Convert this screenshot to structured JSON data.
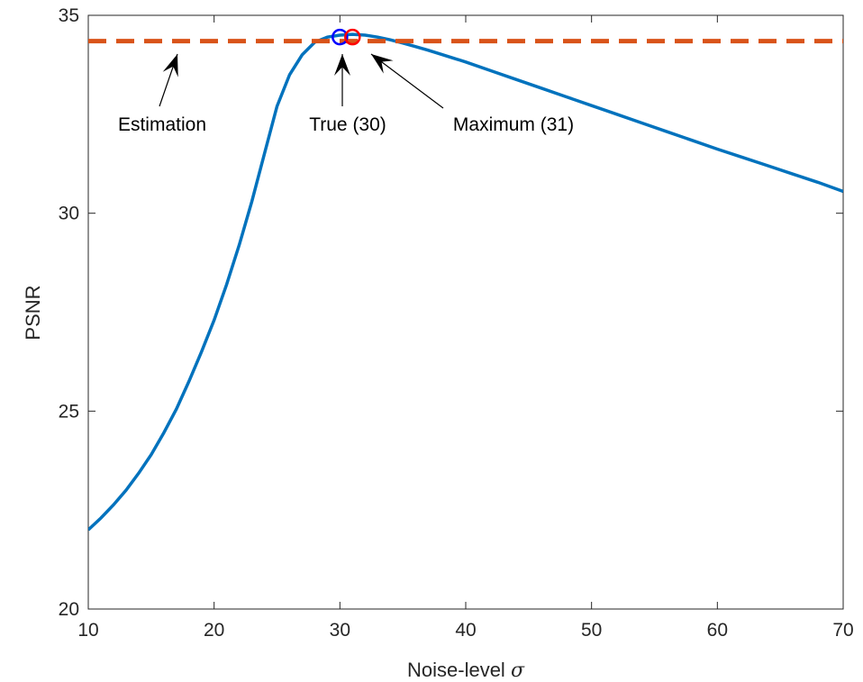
{
  "chart_data": {
    "type": "line",
    "xlabel": "Noise-level",
    "xlabel_symbol": "σ",
    "ylabel": "PSNR",
    "xlim": [
      10,
      70
    ],
    "ylim": [
      20,
      35
    ],
    "xticks": [
      10,
      20,
      30,
      40,
      50,
      60,
      70
    ],
    "yticks": [
      20,
      25,
      30,
      35
    ],
    "grid": false,
    "series": [
      {
        "color": "#0072BD",
        "style": "solid",
        "x": [
          10,
          11,
          12,
          13,
          14,
          15,
          16,
          17,
          18,
          19,
          20,
          21,
          22,
          23,
          24,
          25,
          26,
          27,
          28,
          29,
          30,
          31,
          32,
          33,
          34,
          35,
          36,
          37,
          38,
          39,
          40,
          42,
          44,
          46,
          48,
          50,
          52,
          54,
          56,
          58,
          60,
          62,
          64,
          66,
          68,
          70
        ],
        "y": [
          22.0,
          22.3,
          22.63,
          23.0,
          23.43,
          23.9,
          24.45,
          25.05,
          25.75,
          26.5,
          27.3,
          28.2,
          29.2,
          30.3,
          31.5,
          32.7,
          33.5,
          34.0,
          34.32,
          34.45,
          34.5,
          34.52,
          34.5,
          34.45,
          34.38,
          34.3,
          34.21,
          34.12,
          34.02,
          33.92,
          33.82,
          33.6,
          33.38,
          33.16,
          32.94,
          32.72,
          32.5,
          32.28,
          32.06,
          31.84,
          31.62,
          31.41,
          31.2,
          30.99,
          30.78,
          30.55
        ]
      },
      {
        "color": "#D95319",
        "style": "dashed",
        "x": [
          10,
          70
        ],
        "y": [
          34.35,
          34.35
        ]
      }
    ],
    "markers": [
      {
        "x": 30,
        "y": 34.45,
        "color": "#0000FF",
        "shape": "circle"
      },
      {
        "x": 31,
        "y": 34.45,
        "color": "#FF0000",
        "shape": "circle"
      }
    ],
    "annotations": [
      {
        "text": "Estimation",
        "x": 17,
        "y": 34.3
      },
      {
        "text": "True (30)",
        "x": 30,
        "y": 34.3
      },
      {
        "text": "Maximum (31)",
        "x": 32.2,
        "y": 34.2
      }
    ]
  }
}
